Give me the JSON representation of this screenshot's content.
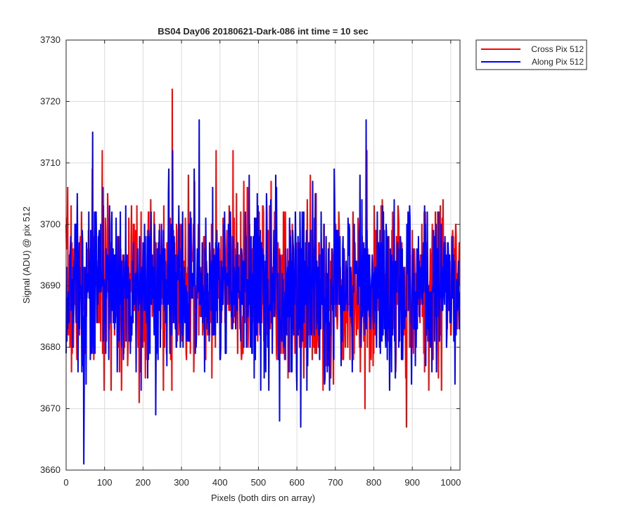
{
  "chart_data": {
    "type": "line",
    "title": "BS04 Day06 20180621-Dark-086 int time = 10 sec",
    "xlabel": "Pixels (both dirs on array)",
    "ylabel": "Signal (ADU) @ pix 512",
    "xlim": [
      0,
      1024
    ],
    "ylim": [
      3660,
      3730
    ],
    "xticks": [
      0,
      100,
      200,
      300,
      400,
      500,
      600,
      700,
      800,
      900,
      1000
    ],
    "yticks": [
      3660,
      3670,
      3680,
      3690,
      3700,
      3710,
      3720,
      3730
    ],
    "grid": true,
    "legend_position": "outside-top-right",
    "series": [
      {
        "name": "Cross Pix 512",
        "color": "#ff0000",
        "noise": {
          "n": 1024,
          "mean": 3690,
          "sd": 7,
          "seed": 7
        },
        "extremes": [
          {
            "x": 276,
            "y": 3722
          },
          {
            "x": 885,
            "y": 3667
          },
          {
            "x": 190,
            "y": 3671
          },
          {
            "x": 777,
            "y": 3670
          }
        ]
      },
      {
        "name": "Along Pix 512",
        "color": "#0000ff",
        "noise": {
          "n": 1024,
          "mean": 3690,
          "sd": 7,
          "seed": 13
        },
        "extremes": [
          {
            "x": 46,
            "y": 3661
          },
          {
            "x": 780,
            "y": 3717
          },
          {
            "x": 346,
            "y": 3717
          },
          {
            "x": 69,
            "y": 3715
          },
          {
            "x": 610,
            "y": 3667
          },
          {
            "x": 555,
            "y": 3668
          },
          {
            "x": 233,
            "y": 3669
          }
        ]
      }
    ]
  }
}
